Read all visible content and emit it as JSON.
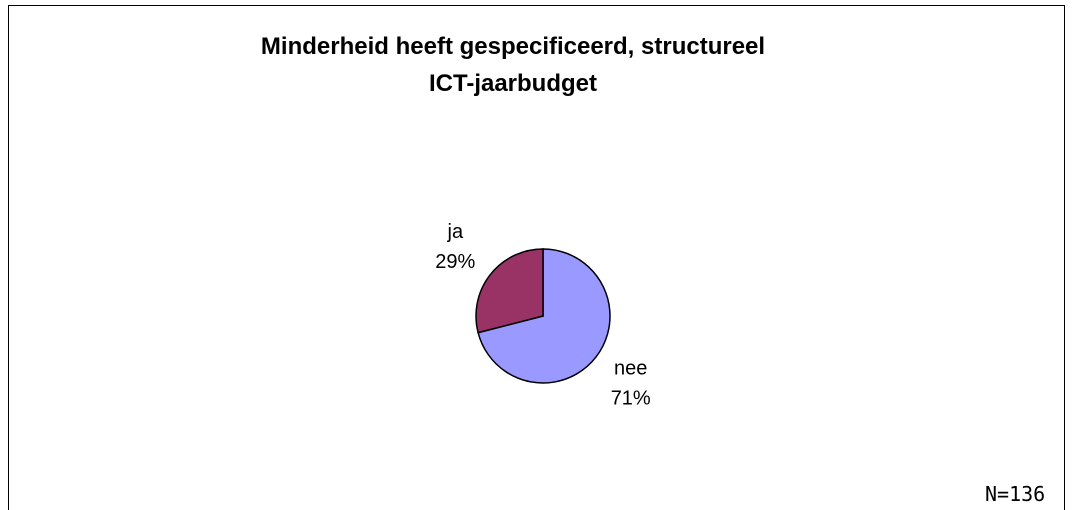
{
  "chart_data": {
    "type": "pie",
    "title": "Minderheid heeft gespecificeerd, structureel\nICT-jaarbudget",
    "categories": [
      "nee",
      "ja"
    ],
    "values": [
      71,
      29
    ],
    "value_labels": [
      "71%",
      "29%"
    ],
    "colors": [
      "#9999ff",
      "#993366"
    ],
    "annotation": "N=136"
  }
}
